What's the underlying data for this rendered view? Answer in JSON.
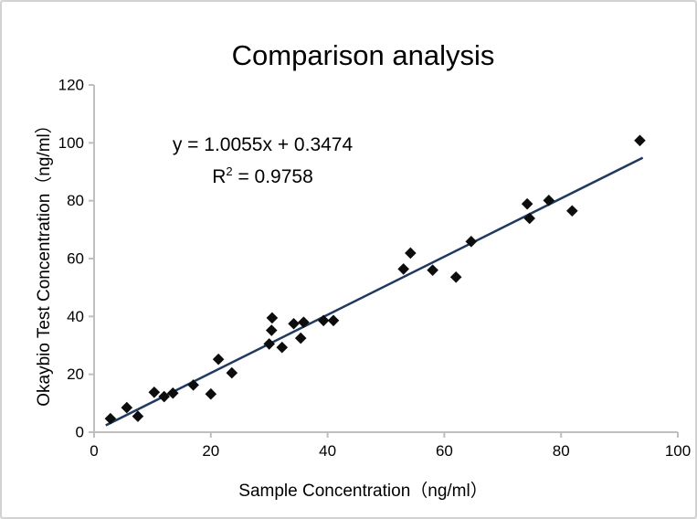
{
  "chart_data": {
    "type": "scatter",
    "title": "Comparison analysis",
    "xlabel": "Sample Concentration（ng/ml）",
    "ylabel": "Okaybio Test Concentration（ng/ml）",
    "xlim": [
      0,
      100
    ],
    "ylim": [
      0,
      120
    ],
    "x_ticks": [
      0,
      20,
      40,
      60,
      80,
      100
    ],
    "y_ticks": [
      0,
      20,
      40,
      60,
      80,
      100,
      120
    ],
    "grid": false,
    "legend": "none",
    "marker": "diamond",
    "annotation": {
      "equation": "y = 1.0055x + 0.3474",
      "r2_base": "R",
      "r2_sup": "2",
      "r2_rest": " = 0.9758"
    },
    "points": [
      [
        2.8,
        4.7
      ],
      [
        5.6,
        8.5
      ],
      [
        7.5,
        5.5
      ],
      [
        10.3,
        13.8
      ],
      [
        12.0,
        12.3
      ],
      [
        13.5,
        13.5
      ],
      [
        17.0,
        16.3
      ],
      [
        20.0,
        13.2
      ],
      [
        21.3,
        25.2
      ],
      [
        23.6,
        20.5
      ],
      [
        30.5,
        39.5
      ],
      [
        30.4,
        35.2
      ],
      [
        30.0,
        30.5
      ],
      [
        32.2,
        29.3
      ],
      [
        34.2,
        37.5
      ],
      [
        35.9,
        38.0
      ],
      [
        35.4,
        32.5
      ],
      [
        39.3,
        38.6
      ],
      [
        41.0,
        38.6
      ],
      [
        53.0,
        56.4
      ],
      [
        54.2,
        61.9
      ],
      [
        58.0,
        56.0
      ],
      [
        62.0,
        53.6
      ],
      [
        64.6,
        65.9
      ],
      [
        74.2,
        78.9
      ],
      [
        74.6,
        73.9
      ],
      [
        77.9,
        80.1
      ],
      [
        81.9,
        76.5
      ],
      [
        93.5,
        100.8
      ]
    ],
    "trendline": {
      "slope": 1.0055,
      "intercept": 0.3474,
      "x_start": 2,
      "x_end": 94
    },
    "colors": {
      "point": "#0d0d0d",
      "trendline": "#1f3a5f",
      "axis": "#bfbfbf",
      "text": "#000000",
      "background": "#ffffff",
      "border": "#d2d2d2"
    }
  }
}
